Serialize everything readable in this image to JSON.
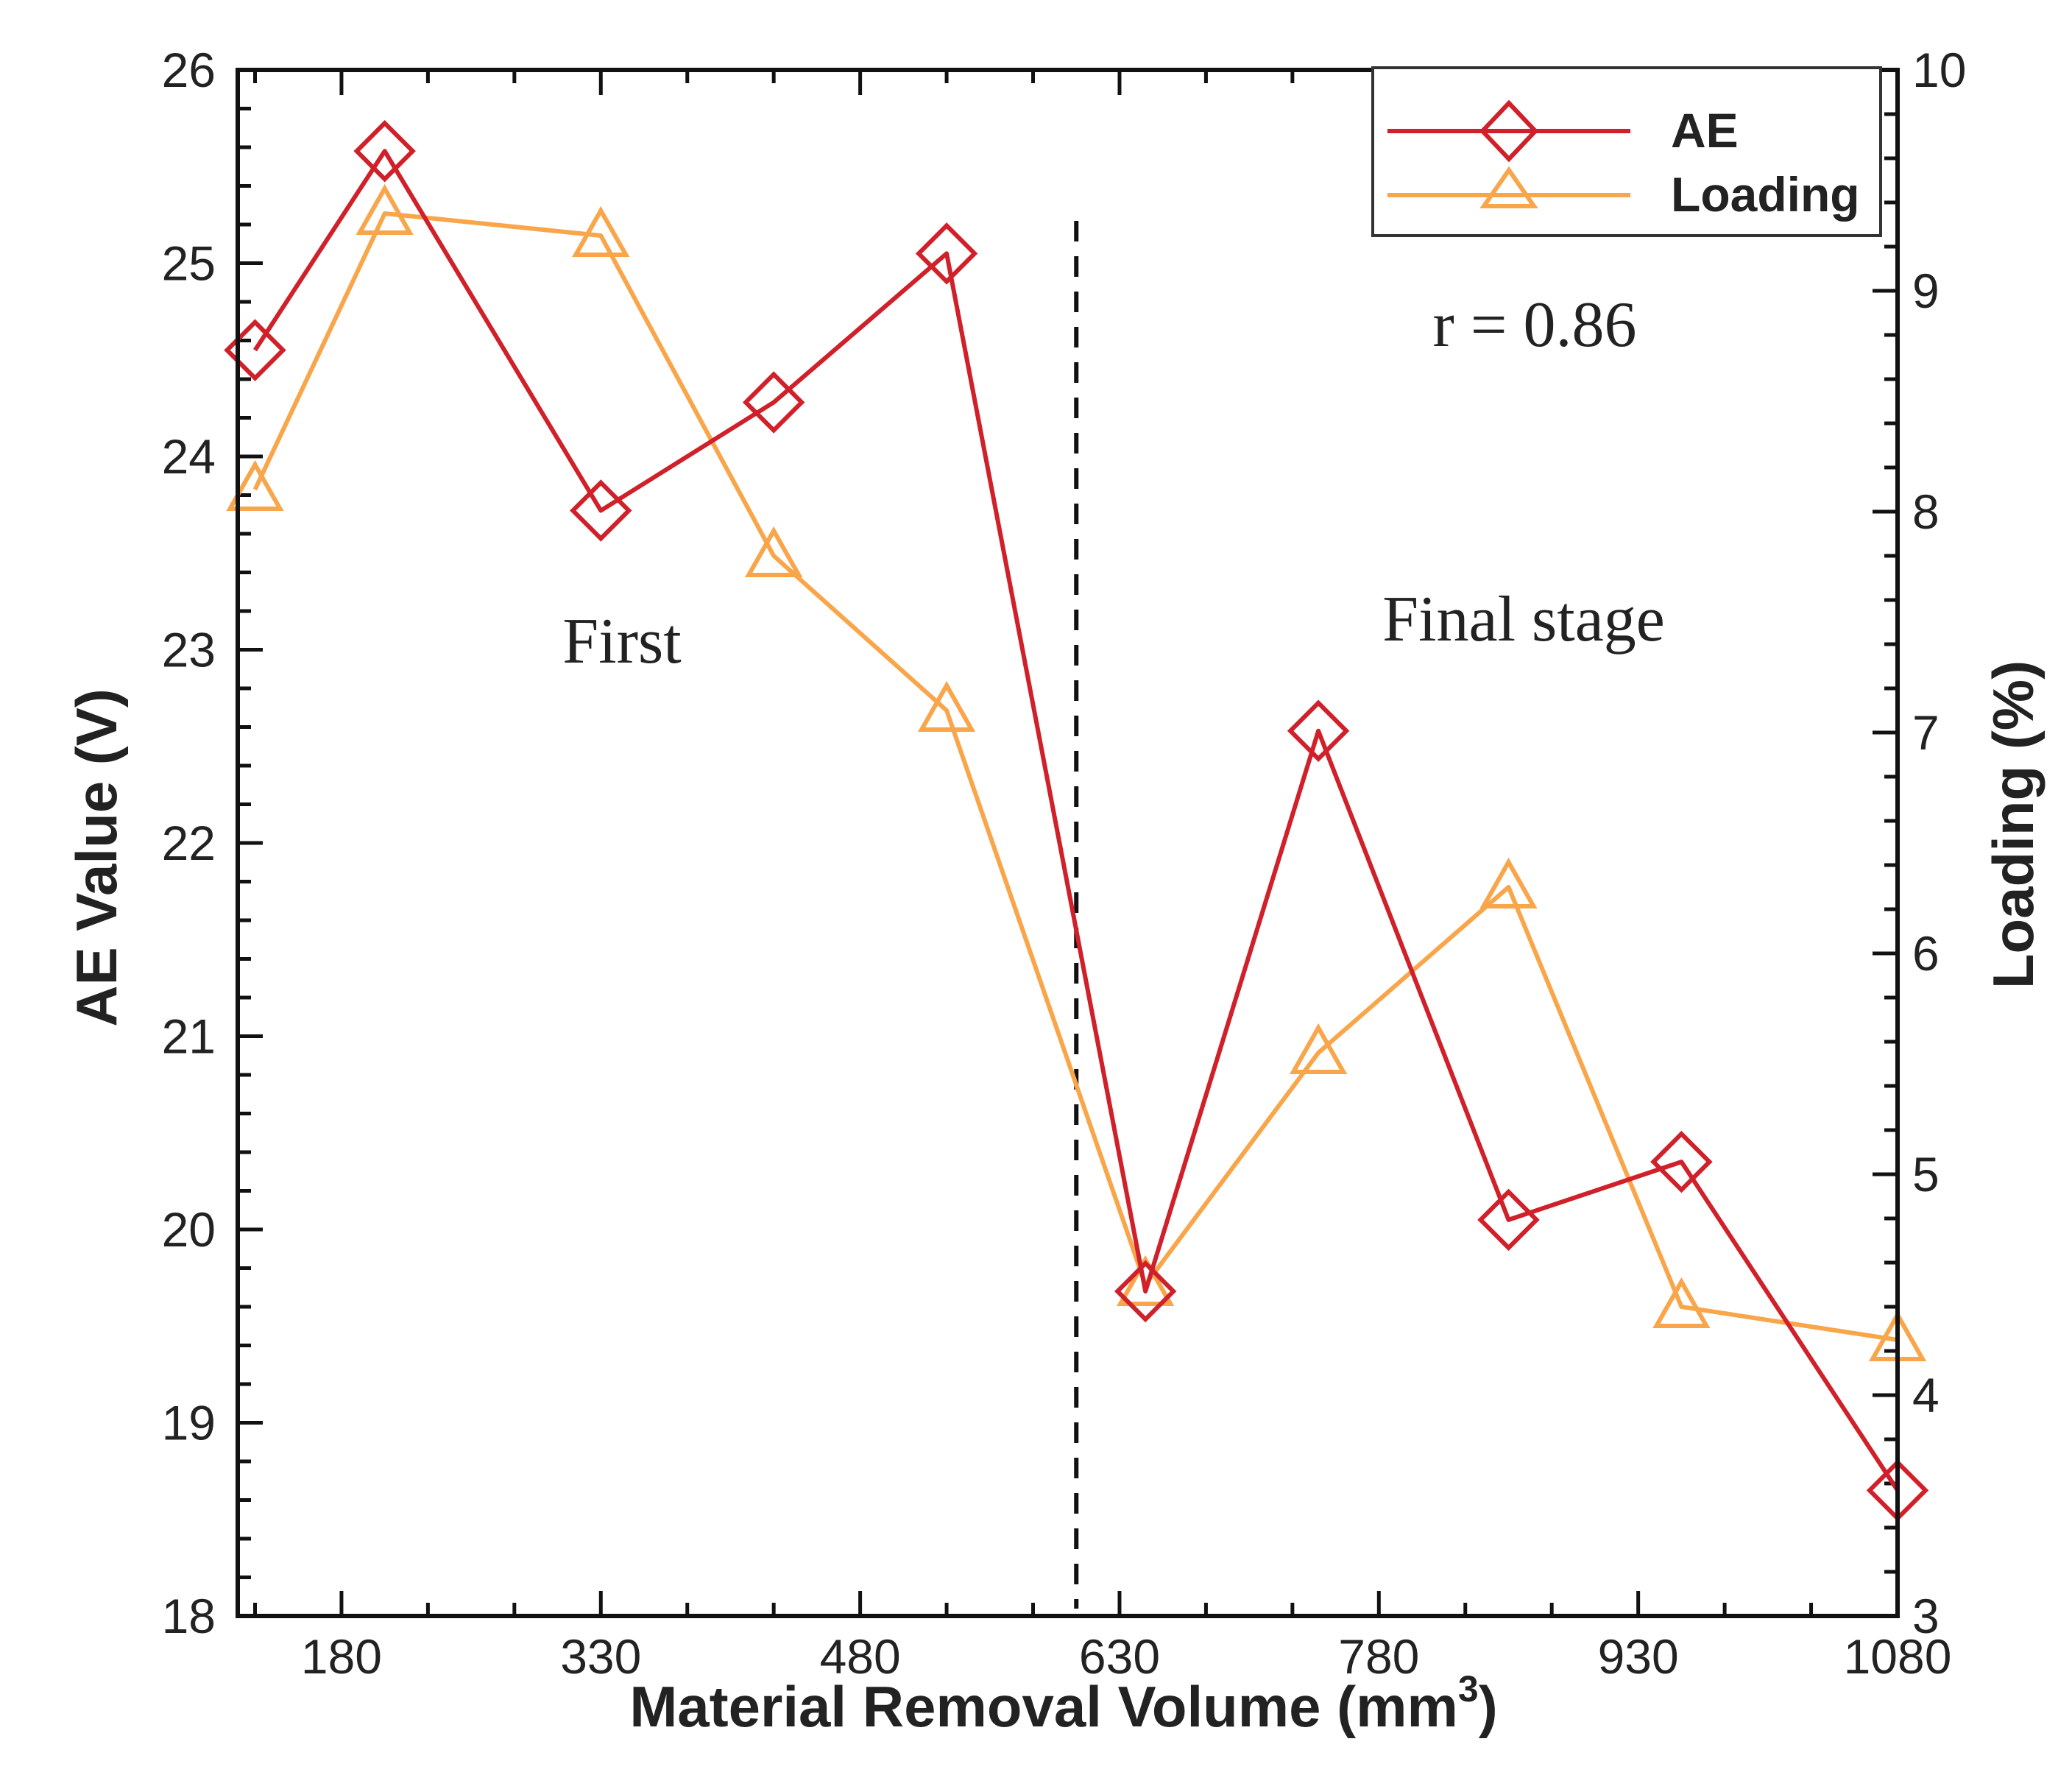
{
  "chart_data": {
    "type": "line",
    "x": [
      130,
      205,
      330,
      430,
      530,
      645,
      745,
      855,
      955,
      1080
    ],
    "xlim": [
      120,
      1080
    ],
    "xticks": [
      180,
      330,
      480,
      630,
      780,
      930,
      1080
    ],
    "xlabel": "Material Removal Volume (mm",
    "xlabel_sup": "3",
    "xlabel_close": ")",
    "ylabel_left": "AE Value (V)",
    "ylabel_right": "Loading (%)",
    "ylim_left": [
      18,
      26
    ],
    "yticks_left": [
      18,
      19,
      20,
      21,
      22,
      23,
      24,
      25,
      26
    ],
    "ylim_right": [
      3,
      10
    ],
    "yticks_right": [
      3,
      4,
      5,
      6,
      7,
      8,
      9,
      10
    ],
    "series": [
      {
        "name": "AE",
        "axis": "left",
        "marker": "diamond",
        "color": "#d0202a",
        "values": [
          24.55,
          25.58,
          23.72,
          24.28,
          25.05,
          19.68,
          22.58,
          20.05,
          20.35,
          18.65
        ]
      },
      {
        "name": "Loading",
        "axis": "right",
        "marker": "triangle",
        "color": "#f9a54a",
        "values": [
          8.1,
          9.35,
          9.25,
          7.8,
          7.1,
          4.5,
          5.55,
          6.3,
          4.4,
          4.25
        ]
      }
    ],
    "divider_x": 605,
    "annotations": {
      "first": "First",
      "final": "Final stage",
      "correlation": "r = 0.86"
    }
  }
}
